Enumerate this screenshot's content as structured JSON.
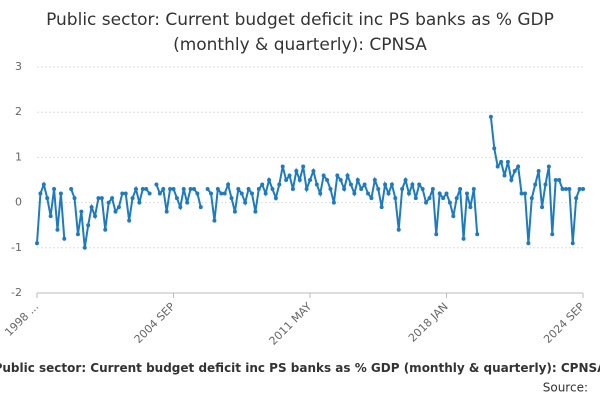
{
  "chart_data": {
    "type": "line",
    "title": "Public sector: Current budget deficit inc PS banks as % GDP (monthly & quarterly): CPNSA",
    "footer": "Public sector: Current budget deficit inc PS banks as % GDP (monthly & quarterly): CPNSA",
    "source": "Source:",
    "categories": [
      "1998 ...",
      null,
      null,
      null,
      null,
      null,
      null,
      null,
      null,
      null,
      null,
      null,
      null,
      null,
      null,
      null,
      null,
      null,
      null,
      null,
      null,
      null,
      null,
      null,
      null,
      null,
      null,
      null,
      null,
      null,
      null,
      null,
      null,
      null,
      null,
      null,
      null,
      null,
      null,
      null,
      "2004 SEP",
      null,
      null,
      null,
      null,
      null,
      null,
      null,
      null,
      null,
      null,
      null,
      null,
      null,
      null,
      null,
      null,
      null,
      null,
      null,
      null,
      null,
      null,
      null,
      null,
      null,
      null,
      null,
      null,
      null,
      null,
      null,
      null,
      null,
      null,
      null,
      null,
      null,
      null,
      null,
      "2011 MAY",
      null,
      null,
      null,
      null,
      null,
      null,
      null,
      null,
      null,
      null,
      null,
      null,
      null,
      null,
      null,
      null,
      null,
      null,
      null,
      null,
      null,
      null,
      null,
      null,
      null,
      null,
      null,
      null,
      null,
      null,
      null,
      null,
      null,
      null,
      null,
      null,
      null,
      null,
      null,
      "2018 JAN",
      null,
      null,
      null,
      null,
      null,
      null,
      null,
      null,
      null,
      null,
      null,
      null,
      null,
      null,
      null,
      null,
      null,
      null,
      null,
      null,
      null,
      null,
      null,
      null,
      null,
      null,
      null,
      null,
      null,
      null,
      null,
      null,
      null,
      null,
      null,
      null,
      null,
      null,
      null,
      "2024 SEP"
    ],
    "series": [
      {
        "name": "CPNSA",
        "color": "#1f7bbf",
        "values": [
          -0.9,
          0.2,
          0.4,
          0.1,
          -0.3,
          0.3,
          -0.6,
          0.2,
          -0.8,
          null,
          0.3,
          0.1,
          -0.7,
          -0.2,
          -1.0,
          -0.5,
          -0.1,
          -0.3,
          0.1,
          0.1,
          -0.6,
          0.0,
          0.1,
          -0.2,
          -0.1,
          0.2,
          0.2,
          -0.4,
          0.1,
          0.3,
          0.0,
          0.3,
          0.3,
          0.2,
          null,
          0.4,
          0.2,
          0.3,
          -0.2,
          0.3,
          0.3,
          0.1,
          -0.1,
          0.3,
          0.0,
          0.3,
          0.3,
          0.2,
          -0.1,
          null,
          0.3,
          0.2,
          -0.4,
          0.3,
          0.2,
          0.2,
          0.4,
          0.1,
          -0.2,
          0.3,
          0.2,
          0.0,
          0.3,
          0.2,
          -0.2,
          0.3,
          0.4,
          0.2,
          0.5,
          0.3,
          0.1,
          0.4,
          0.8,
          0.5,
          0.6,
          0.3,
          0.7,
          0.5,
          0.8,
          0.3,
          0.5,
          0.7,
          0.4,
          0.2,
          0.6,
          0.5,
          0.3,
          0.0,
          0.6,
          0.5,
          0.3,
          0.6,
          0.4,
          0.2,
          0.5,
          0.3,
          0.4,
          0.2,
          0.1,
          0.5,
          0.3,
          -0.1,
          0.4,
          0.2,
          0.4,
          0.1,
          -0.6,
          0.3,
          0.5,
          0.2,
          0.4,
          0.1,
          0.4,
          0.3,
          0.0,
          0.1,
          0.3,
          -0.7,
          0.2,
          0.1,
          0.2,
          0.0,
          -0.3,
          0.1,
          0.3,
          -0.8,
          0.2,
          -0.1,
          0.3,
          -0.7,
          null,
          null,
          null,
          1.9,
          1.2,
          0.8,
          0.9,
          0.6,
          0.9,
          0.5,
          0.7,
          0.8,
          0.2,
          0.2,
          -0.9,
          0.1,
          0.4,
          0.7,
          -0.1,
          0.4,
          0.8,
          -0.7,
          0.5,
          0.5,
          0.3,
          0.3,
          0.3,
          -0.9,
          0.1,
          0.3,
          0.3
        ]
      }
    ],
    "ylim": [
      -2,
      3
    ],
    "yticks": [
      -2,
      -1,
      0,
      1,
      2,
      3
    ],
    "grid": true
  }
}
